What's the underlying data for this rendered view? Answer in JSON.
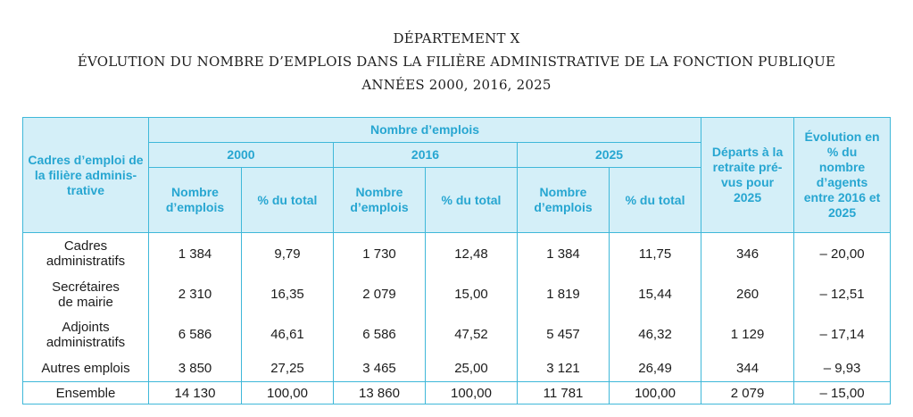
{
  "header": {
    "line1": "DÉPARTEMENT X",
    "line2": "ÉVOLUTION DU NOMBRE D’EMPLOIS DANS LA FILIÈRE ADMINISTRATIVE DE LA FONCTION PUBLIQUE",
    "line3": "ANNÉES 2000, 2016, 2025"
  },
  "table": {
    "col_label_header": "Cadres d’emploi de la filière adminis-trative",
    "group_header": "Nombre d’emplois",
    "years": [
      "2000",
      "2016",
      "2025"
    ],
    "sub_headers": {
      "count": "Nombre d’emplois",
      "pct": "% du total"
    },
    "retirement_header": "Départs à la retraite pré-vus pour 2025",
    "evolution_header": "Évolution en % du nombre d’agents entre 2016 et 2025",
    "rows": [
      {
        "label": "Cadres administratifs",
        "c2000": "1 384",
        "p2000": "9,79",
        "c2016": "1 730",
        "p2016": "12,48",
        "c2025": "1 384",
        "p2025": "11,75",
        "departs": "346",
        "evolution": "– 20,00"
      },
      {
        "label": "Secrétaires de mairie",
        "c2000": "2 310",
        "p2000": "16,35",
        "c2016": "2 079",
        "p2016": "15,00",
        "c2025": "1 819",
        "p2025": "15,44",
        "departs": "260",
        "evolution": "– 12,51"
      },
      {
        "label": "Adjoints administratifs",
        "c2000": "6 586",
        "p2000": "46,61",
        "c2016": "6 586",
        "p2016": "47,52",
        "c2025": "5 457",
        "p2025": "46,32",
        "departs": "1 129",
        "evolution": "– 17,14"
      },
      {
        "label": "Autres emplois",
        "c2000": "3 850",
        "p2000": "27,25",
        "c2016": "3 465",
        "p2016": "25,00",
        "c2025": "3 121",
        "p2025": "26,49",
        "departs": "344",
        "evolution": "– 9,93"
      }
    ],
    "total": {
      "label": "Ensemble",
      "c2000": "14 130",
      "p2000": "100,00",
      "c2016": "13 860",
      "p2016": "100,00",
      "c2025": "11 781",
      "p2025": "100,00",
      "departs": "2 079",
      "evolution": "– 15,00"
    }
  },
  "colors": {
    "header_bg": "#d4eff8",
    "header_text": "#27a6d1",
    "border": "#3fb8d9"
  }
}
